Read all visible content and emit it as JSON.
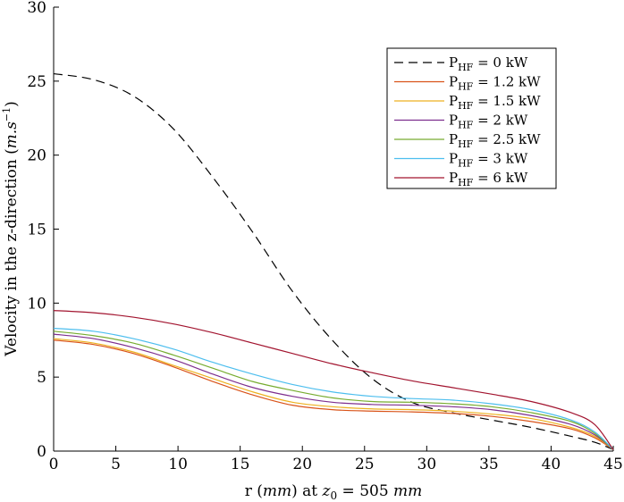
{
  "chart_data": {
    "type": "line",
    "xlabel_parts": [
      "r (",
      "mm",
      ") at ",
      "z",
      "0",
      " = 505 ",
      "mm"
    ],
    "ylabel_parts": [
      "Velocity in the z-direction (",
      "m.s",
      "−1",
      ")"
    ],
    "xlim": [
      0,
      45
    ],
    "ylim": [
      0,
      30
    ],
    "xticks": [
      "0",
      "5",
      "10",
      "15",
      "20",
      "25",
      "30",
      "35",
      "40",
      "45"
    ],
    "yticks": [
      "0",
      "5",
      "10",
      "15",
      "20",
      "25",
      "30"
    ],
    "x": [
      0,
      3.2,
      6.4,
      9.6,
      12.8,
      16.0,
      19.2,
      22.4,
      25.6,
      28.8,
      32.0,
      35.2,
      38.4,
      41.6,
      43.5,
      45
    ],
    "legend_position": "top-right",
    "series": [
      {
        "name_prefix": "P",
        "name_sub": "HF",
        "name_suffix": " = 0 kW",
        "color": "#000000",
        "dash": "10,6",
        "values": [
          25.5,
          25.1,
          24.0,
          21.8,
          18.5,
          14.8,
          10.8,
          7.5,
          4.9,
          3.3,
          2.6,
          2.1,
          1.6,
          1.0,
          0.6,
          0.1
        ]
      },
      {
        "name_prefix": "P",
        "name_sub": "HF",
        "name_suffix": " = 1.2 kW",
        "color": "#d95319",
        "dash": "",
        "values": [
          7.5,
          7.2,
          6.6,
          5.7,
          4.7,
          3.8,
          3.1,
          2.8,
          2.7,
          2.65,
          2.55,
          2.35,
          2.0,
          1.5,
          0.9,
          0.1
        ]
      },
      {
        "name_prefix": "P",
        "name_sub": "HF",
        "name_suffix": " = 1.5 kW",
        "color": "#edb120",
        "dash": "",
        "values": [
          7.6,
          7.3,
          6.7,
          5.8,
          4.9,
          4.0,
          3.3,
          3.0,
          2.85,
          2.8,
          2.7,
          2.5,
          2.2,
          1.6,
          1.0,
          0.1
        ]
      },
      {
        "name_prefix": "P",
        "name_sub": "HF",
        "name_suffix": " = 2 kW",
        "color": "#7e2f8e",
        "dash": "",
        "values": [
          7.9,
          7.6,
          7.0,
          6.2,
          5.2,
          4.3,
          3.7,
          3.3,
          3.15,
          3.1,
          3.0,
          2.8,
          2.4,
          1.8,
          1.1,
          0.1
        ]
      },
      {
        "name_prefix": "P",
        "name_sub": "HF",
        "name_suffix": " = 2.5 kW",
        "color": "#77ac30",
        "dash": "",
        "values": [
          8.1,
          7.8,
          7.3,
          6.5,
          5.6,
          4.7,
          4.1,
          3.6,
          3.35,
          3.3,
          3.2,
          3.0,
          2.6,
          2.0,
          1.2,
          0.1
        ]
      },
      {
        "name_prefix": "P",
        "name_sub": "HF",
        "name_suffix": " = 3 kW",
        "color": "#4dbeee",
        "dash": "",
        "values": [
          8.3,
          8.1,
          7.6,
          6.9,
          6.0,
          5.2,
          4.5,
          4.0,
          3.7,
          3.55,
          3.45,
          3.2,
          2.8,
          2.1,
          1.3,
          0.1
        ]
      },
      {
        "name_prefix": "P",
        "name_sub": "HF",
        "name_suffix": " = 6 kW",
        "color": "#a2142f",
        "dash": "",
        "values": [
          9.5,
          9.35,
          9.05,
          8.6,
          8.0,
          7.3,
          6.6,
          5.9,
          5.3,
          4.75,
          4.3,
          3.85,
          3.35,
          2.6,
          1.8,
          0.1
        ]
      }
    ]
  }
}
